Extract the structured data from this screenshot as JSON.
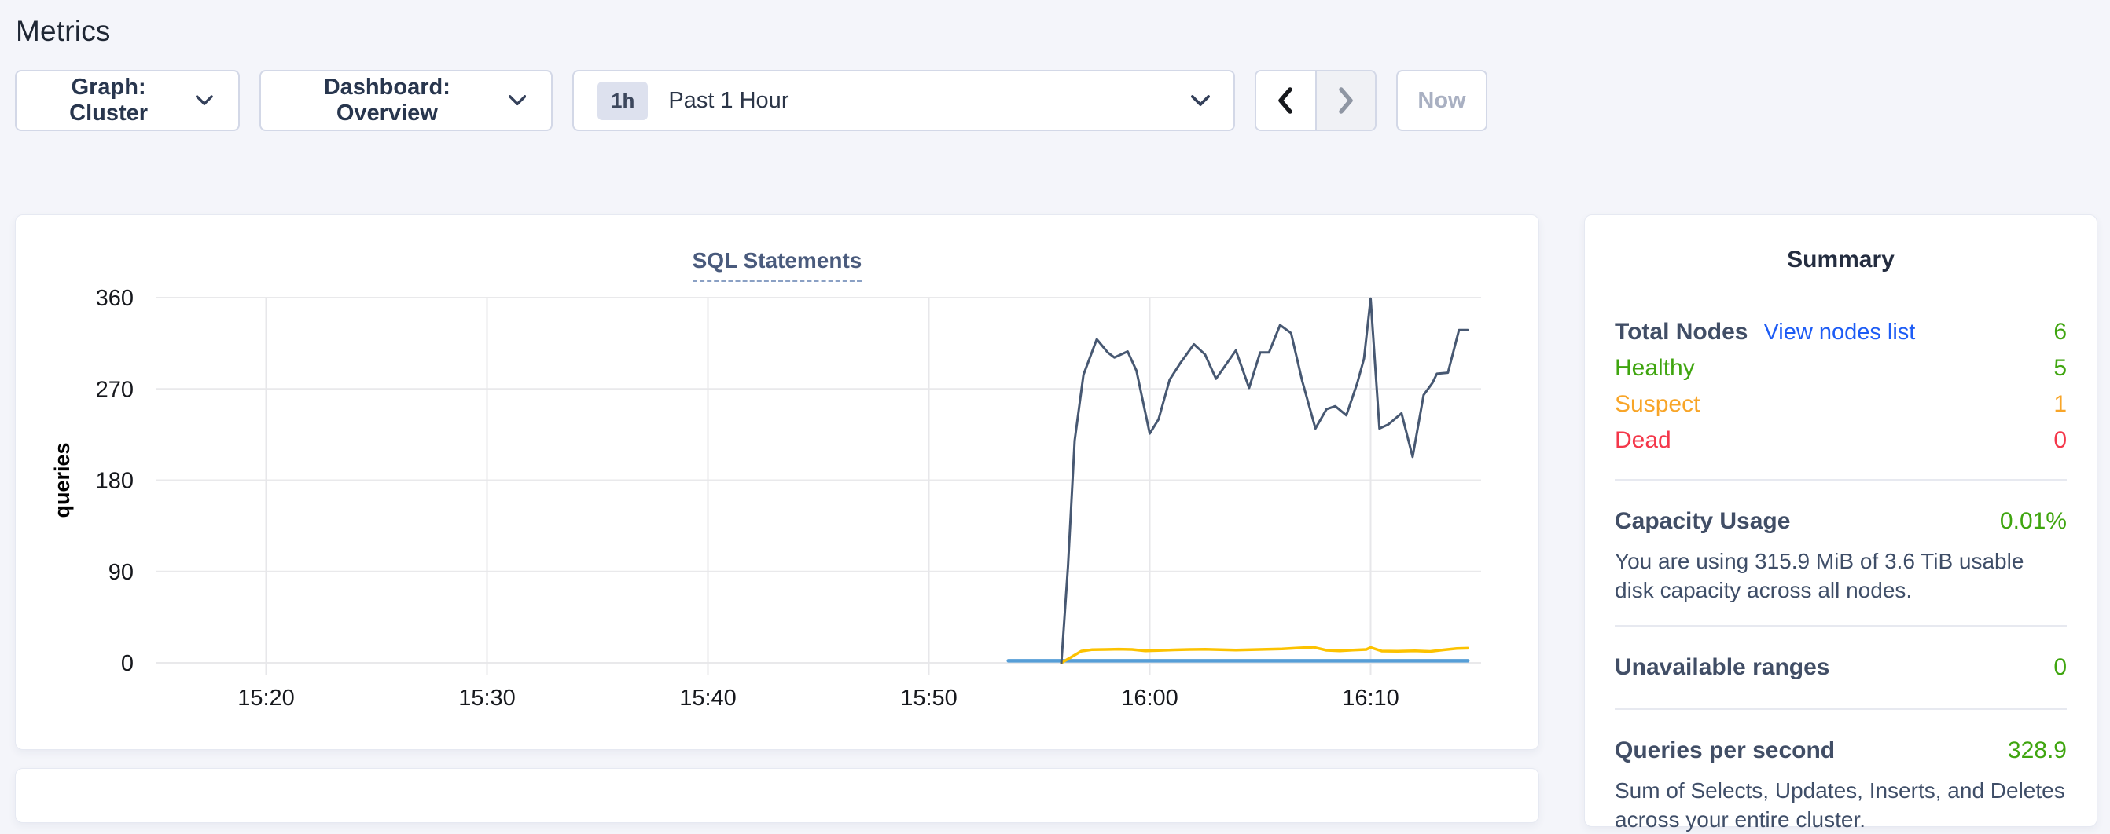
{
  "page": {
    "title": "Metrics"
  },
  "controls": {
    "graph_dropdown": "Graph: Cluster",
    "dashboard_dropdown": "Dashboard: Overview",
    "time_badge": "1h",
    "time_label": "Past 1 Hour",
    "now_button": "Now"
  },
  "summary": {
    "title": "Summary",
    "total_nodes": {
      "label": "Total Nodes",
      "link": "View nodes list",
      "value": "6"
    },
    "healthy": {
      "label": "Healthy",
      "value": "5"
    },
    "suspect": {
      "label": "Suspect",
      "value": "1"
    },
    "dead": {
      "label": "Dead",
      "value": "0"
    },
    "capacity": {
      "label": "Capacity Usage",
      "value": "0.01%",
      "description": "You are using 315.9 MiB of 3.6 TiB usable disk capacity across all nodes."
    },
    "unavailable": {
      "label": "Unavailable ranges",
      "value": "0"
    },
    "qps": {
      "label": "Queries per second",
      "value": "328.9",
      "description": "Sum of Selects, Updates, Inserts, and Deletes across your entire cluster."
    }
  },
  "colors": {
    "healthy_green": "#3fa50f",
    "suspect_orange": "#f8a528",
    "dead_red": "#f4374a",
    "link_blue": "#1d5cf5",
    "page_background": "#f4f5fa",
    "heading_navy": "#1f2734"
  },
  "chart_data": {
    "type": "line",
    "title": "SQL Statements",
    "ylabel": "queries",
    "xlabel": "",
    "grid": true,
    "legend": "none",
    "ylim": [
      0,
      360
    ],
    "y_ticks": [
      0,
      90,
      180,
      270,
      360
    ],
    "x_domain_time": [
      "15:15",
      "16:15"
    ],
    "x_domain_minutes": [
      0,
      60
    ],
    "x_ticks": [
      {
        "t": 5,
        "label": "15:20"
      },
      {
        "t": 15,
        "label": "15:30"
      },
      {
        "t": 25,
        "label": "15:40"
      },
      {
        "t": 35,
        "label": "15:50"
      },
      {
        "t": 45,
        "label": "16:00"
      },
      {
        "t": 55,
        "label": "16:10"
      }
    ],
    "x_unit": "minutes after 15:15",
    "series": [
      {
        "name": "series-dark-slate",
        "color": "#475872",
        "points": [
          [
            41.0,
            0
          ],
          [
            41.3,
            95
          ],
          [
            41.6,
            219
          ],
          [
            42.0,
            284
          ],
          [
            42.6,
            319
          ],
          [
            43.1,
            306
          ],
          [
            43.4,
            301
          ],
          [
            44.0,
            307
          ],
          [
            44.4,
            288
          ],
          [
            45.0,
            226
          ],
          [
            45.4,
            240
          ],
          [
            45.9,
            279
          ],
          [
            46.4,
            296
          ],
          [
            47.0,
            314
          ],
          [
            47.5,
            304
          ],
          [
            48.0,
            280
          ],
          [
            48.9,
            308
          ],
          [
            49.5,
            271
          ],
          [
            50.0,
            306
          ],
          [
            50.4,
            306
          ],
          [
            50.9,
            333
          ],
          [
            51.4,
            325
          ],
          [
            51.9,
            278
          ],
          [
            52.5,
            231
          ],
          [
            53.0,
            250
          ],
          [
            53.4,
            253
          ],
          [
            53.9,
            244
          ],
          [
            54.4,
            276
          ],
          [
            54.7,
            300
          ],
          [
            55.0,
            359
          ],
          [
            55.4,
            231
          ],
          [
            55.8,
            235
          ],
          [
            56.4,
            246
          ],
          [
            56.9,
            203
          ],
          [
            57.4,
            264
          ],
          [
            57.8,
            276
          ],
          [
            58.0,
            285
          ],
          [
            58.5,
            286
          ],
          [
            59.0,
            328
          ],
          [
            59.4,
            328
          ]
        ]
      },
      {
        "name": "series-yellow",
        "color": "#fcc200",
        "points": [
          [
            41.0,
            0
          ],
          [
            41.4,
            5
          ],
          [
            41.9,
            11.5
          ],
          [
            42.4,
            13
          ],
          [
            43.0,
            13.2
          ],
          [
            43.6,
            13.5
          ],
          [
            44.2,
            13.2
          ],
          [
            44.8,
            11.8
          ],
          [
            45.4,
            12.2
          ],
          [
            46.1,
            12.8
          ],
          [
            46.8,
            13.2
          ],
          [
            47.5,
            13.4
          ],
          [
            48.2,
            13
          ],
          [
            48.9,
            12.6
          ],
          [
            49.6,
            13
          ],
          [
            50.3,
            13.4
          ],
          [
            51.0,
            13.8
          ],
          [
            51.7,
            14.6
          ],
          [
            52.4,
            15.4
          ],
          [
            53.0,
            12.4
          ],
          [
            53.6,
            11.8
          ],
          [
            54.2,
            12.6
          ],
          [
            54.8,
            13.2
          ],
          [
            55.0,
            15.2
          ],
          [
            55.5,
            11.6
          ],
          [
            56.2,
            11.4
          ],
          [
            57.0,
            11.8
          ],
          [
            57.7,
            11.2
          ],
          [
            58.3,
            12.8
          ],
          [
            58.9,
            14.2
          ],
          [
            59.4,
            14.4
          ]
        ]
      },
      {
        "name": "series-blue",
        "color": "#569ed7",
        "points": [
          [
            38.6,
            2
          ],
          [
            45.0,
            2
          ],
          [
            52.0,
            2
          ],
          [
            59.4,
            2
          ]
        ]
      }
    ]
  }
}
